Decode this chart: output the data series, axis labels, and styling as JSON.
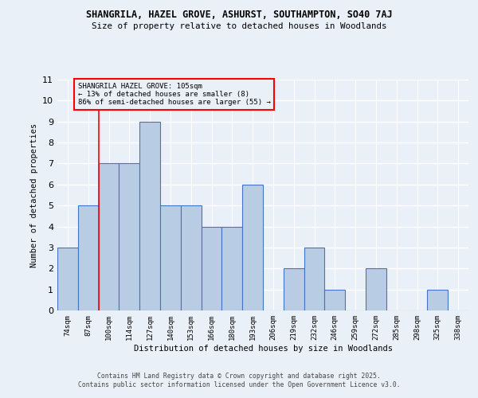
{
  "title1": "SHANGRILA, HAZEL GROVE, ASHURST, SOUTHAMPTON, SO40 7AJ",
  "title2": "Size of property relative to detached houses in Woodlands",
  "xlabel": "Distribution of detached houses by size in Woodlands",
  "ylabel": "Number of detached properties",
  "categories": [
    "74sqm",
    "87sqm",
    "100sqm",
    "114sqm",
    "127sqm",
    "140sqm",
    "153sqm",
    "166sqm",
    "180sqm",
    "193sqm",
    "206sqm",
    "219sqm",
    "232sqm",
    "246sqm",
    "259sqm",
    "272sqm",
    "285sqm",
    "298sqm",
    "325sqm",
    "338sqm"
  ],
  "values": [
    3,
    5,
    7,
    7,
    9,
    5,
    5,
    4,
    4,
    6,
    0,
    2,
    3,
    1,
    0,
    2,
    0,
    0,
    1,
    0
  ],
  "bar_color": "#b8cce4",
  "bar_edge_color": "#4472c4",
  "annotation_box_text": "SHANGRILA HAZEL GROVE: 105sqm\n← 13% of detached houses are smaller (8)\n86% of semi-detached houses are larger (55) →",
  "red_line_x": 2,
  "ylim": [
    0,
    11
  ],
  "yticks": [
    0,
    1,
    2,
    3,
    4,
    5,
    6,
    7,
    8,
    9,
    10,
    11
  ],
  "background_color": "#eaf0f8",
  "grid_color": "#ffffff",
  "footer1": "Contains HM Land Registry data © Crown copyright and database right 2025.",
  "footer2": "Contains public sector information licensed under the Open Government Licence v3.0."
}
